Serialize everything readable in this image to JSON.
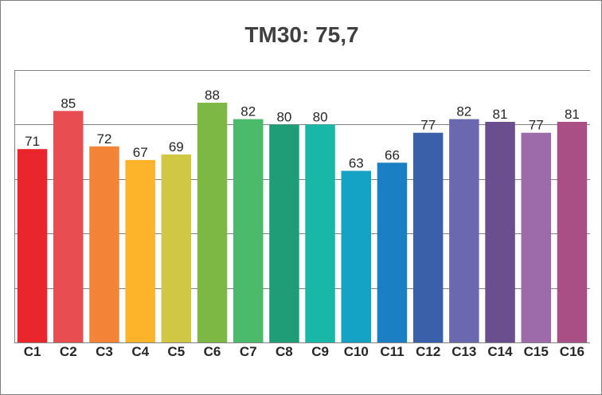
{
  "chart_data": {
    "type": "bar",
    "title": "TM30: 75,7",
    "xlabel": "",
    "ylabel": "",
    "categories": [
      "C1",
      "C2",
      "C3",
      "C4",
      "C5",
      "C6",
      "C7",
      "C8",
      "C9",
      "C10",
      "C11",
      "C12",
      "C13",
      "C14",
      "C15",
      "C16"
    ],
    "values": [
      71,
      85,
      72,
      67,
      69,
      88,
      82,
      80,
      80,
      63,
      66,
      77,
      82,
      81,
      77,
      81
    ],
    "ylim": [
      0,
      100
    ],
    "grid": true,
    "legend": "none",
    "colors": [
      "#e8262b",
      "#e84d52",
      "#f38437",
      "#fdb32a",
      "#d0c844",
      "#7db844",
      "#4bba6b",
      "#1f9d77",
      "#19b7a8",
      "#14a3c5",
      "#1b7fc3",
      "#3960a8",
      "#6a68ae",
      "#6b4e8e",
      "#9d6ba7",
      "#a94f86"
    ]
  }
}
